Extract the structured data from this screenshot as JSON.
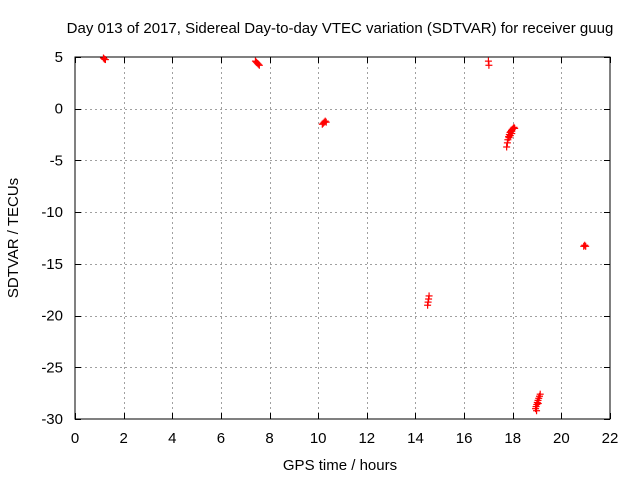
{
  "chart_data": {
    "type": "scatter",
    "title": "Day 013 of 2017, Sidereal Day-to-day VTEC variation (SDTVAR) for receiver guug",
    "xlabel": "GPS time / hours",
    "ylabel": "SDTVAR / TECUs",
    "xlim": [
      0,
      22
    ],
    "ylim": [
      -30,
      5
    ],
    "xticks": [
      0,
      2,
      4,
      6,
      8,
      10,
      12,
      14,
      16,
      18,
      20,
      22
    ],
    "yticks": [
      5,
      0,
      -5,
      -10,
      -15,
      -20,
      -25,
      -30
    ],
    "grid": true,
    "marker": "+",
    "color": "#ff0000",
    "series": [
      {
        "name": "SDTVAR",
        "points": [
          [
            1.17,
            4.9
          ],
          [
            1.21,
            4.8
          ],
          [
            1.25,
            4.75
          ],
          [
            7.42,
            4.6
          ],
          [
            7.46,
            4.5
          ],
          [
            7.5,
            4.4
          ],
          [
            7.54,
            4.3
          ],
          [
            7.58,
            4.2
          ],
          [
            10.17,
            -1.5
          ],
          [
            10.21,
            -1.4
          ],
          [
            10.25,
            -1.3
          ],
          [
            10.29,
            -1.2
          ],
          [
            10.33,
            -1.3
          ],
          [
            14.5,
            -19.0
          ],
          [
            14.52,
            -18.7
          ],
          [
            14.54,
            -18.4
          ],
          [
            14.56,
            -18.1
          ],
          [
            17.0,
            4.6
          ],
          [
            17.02,
            4.2
          ],
          [
            17.75,
            -3.7
          ],
          [
            17.78,
            -3.3
          ],
          [
            17.8,
            -3.0
          ],
          [
            17.83,
            -2.7
          ],
          [
            17.86,
            -2.5
          ],
          [
            17.89,
            -2.3
          ],
          [
            17.92,
            -2.2
          ],
          [
            17.95,
            -2.1
          ],
          [
            17.98,
            -2.0
          ],
          [
            18.02,
            -1.9
          ],
          [
            18.05,
            -1.8
          ],
          [
            18.08,
            -1.9
          ],
          [
            17.85,
            -2.8
          ],
          [
            17.9,
            -2.6
          ],
          [
            17.96,
            -2.4
          ],
          [
            18.94,
            -29.0
          ],
          [
            18.96,
            -28.8
          ],
          [
            18.99,
            -28.6
          ],
          [
            19.01,
            -28.4
          ],
          [
            19.04,
            -28.2
          ],
          [
            19.07,
            -28.0
          ],
          [
            19.1,
            -27.8
          ],
          [
            19.13,
            -27.6
          ],
          [
            18.98,
            -29.2
          ],
          [
            19.05,
            -28.5
          ],
          [
            20.92,
            -13.3
          ],
          [
            20.96,
            -13.2
          ],
          [
            21.0,
            -13.3
          ]
        ]
      }
    ]
  }
}
